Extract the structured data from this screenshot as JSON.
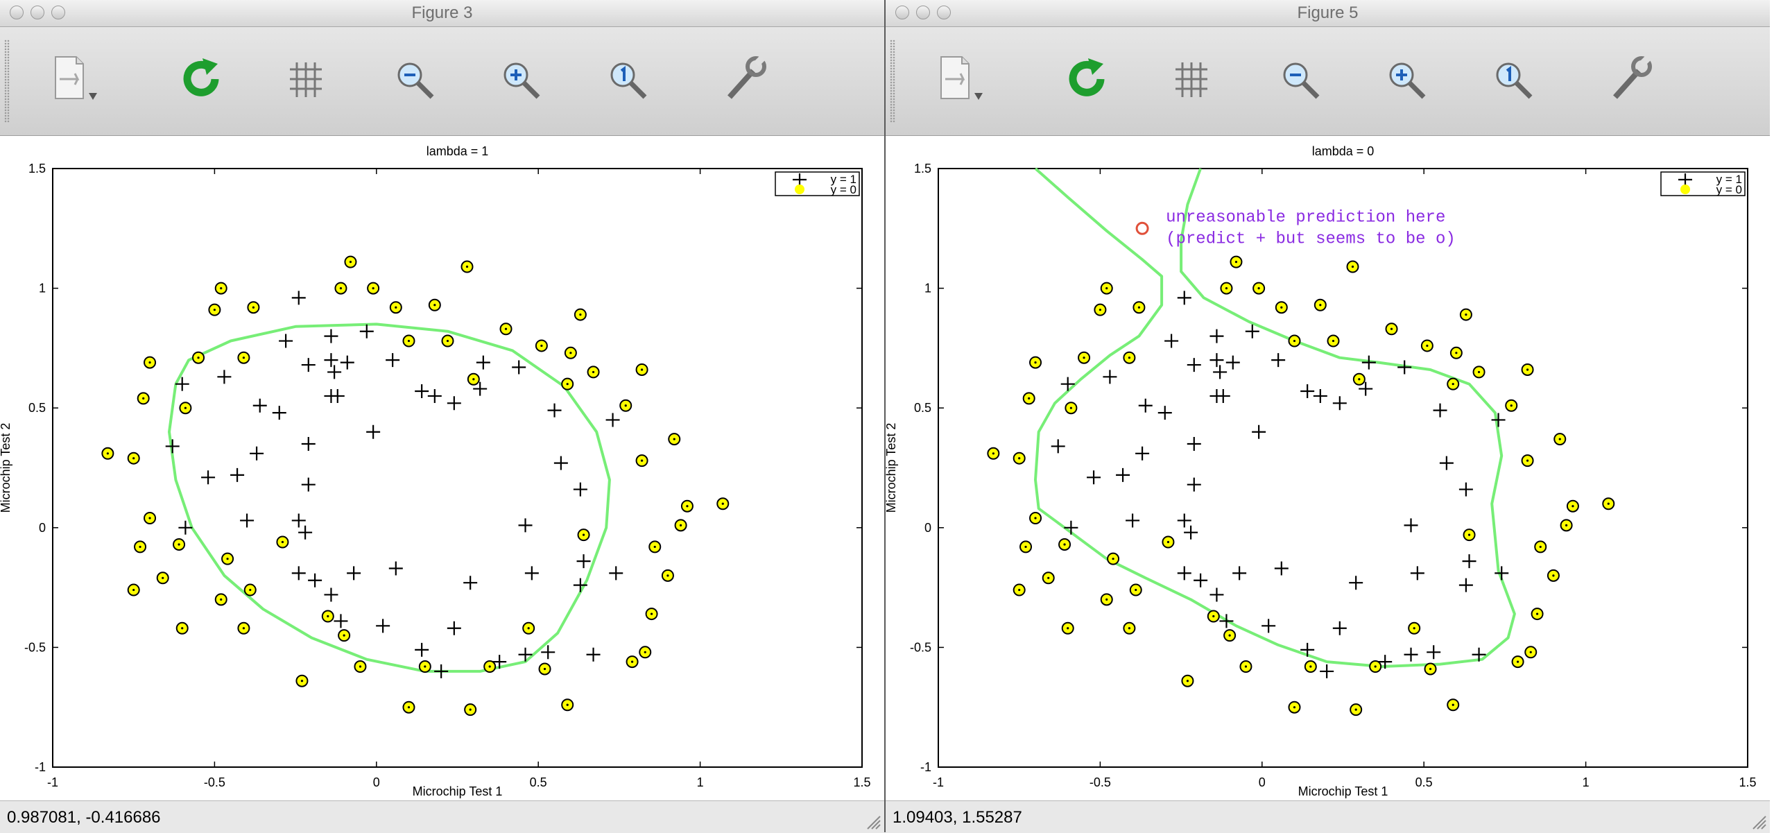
{
  "windows": [
    {
      "title": "Figure 3",
      "status": "0.987081, -0.416686",
      "chart_data": {
        "type": "scatter",
        "title": "lambda = 1",
        "xlabel": "Microchip Test 1",
        "ylabel": "Microchip Test 2",
        "xlim": [
          -1,
          1.5
        ],
        "ylim": [
          -1,
          1.5
        ],
        "xticks": [
          "-1",
          "-0.5",
          "0",
          "0.5",
          "1",
          "1.5"
        ],
        "yticks": [
          "-1",
          "-0.5",
          "0",
          "0.5",
          "1",
          "1.5"
        ],
        "legend": [
          "y = 1",
          "y = 0"
        ],
        "legend_position": "top-right",
        "boundary": [
          [
            -0.62,
            0.6
          ],
          [
            -0.64,
            0.4
          ],
          [
            -0.62,
            0.2
          ],
          [
            -0.57,
            0.0
          ],
          [
            -0.47,
            -0.2
          ],
          [
            -0.35,
            -0.34
          ],
          [
            -0.2,
            -0.46
          ],
          [
            -0.03,
            -0.55
          ],
          [
            0.15,
            -0.6
          ],
          [
            0.32,
            -0.6
          ],
          [
            0.46,
            -0.56
          ],
          [
            0.56,
            -0.44
          ],
          [
            0.65,
            -0.22
          ],
          [
            0.71,
            0.0
          ],
          [
            0.72,
            0.2
          ],
          [
            0.68,
            0.4
          ],
          [
            0.58,
            0.59
          ],
          [
            0.42,
            0.74
          ],
          [
            0.22,
            0.82
          ],
          [
            0.0,
            0.85
          ],
          [
            -0.25,
            0.84
          ],
          [
            -0.45,
            0.78
          ],
          [
            -0.58,
            0.7
          ],
          [
            -0.62,
            0.6
          ]
        ],
        "boundary_color": "#77ee77"
      }
    },
    {
      "title": "Figure 5",
      "status": "1.09403,  1.55287",
      "annotation": [
        "unreasonable prediction here",
        "(predict + but seems to be o)"
      ],
      "annotation_point": [
        -0.37,
        1.25
      ],
      "annotation_color": "#8a2be2",
      "marker_color": "#e0503a",
      "chart_data": {
        "type": "scatter",
        "title": "lambda = 0",
        "xlabel": "Microchip Test 1",
        "ylabel": "Microchip Test 2",
        "xlim": [
          -1,
          1.5
        ],
        "ylim": [
          -1,
          1.5
        ],
        "xticks": [
          "-1",
          "-0.5",
          "0",
          "0.5",
          "1",
          "1.5"
        ],
        "yticks": [
          "-1",
          "-0.5",
          "0",
          "0.5",
          "1",
          "1.5"
        ],
        "legend": [
          "y = 1",
          "y = 0"
        ],
        "legend_position": "top-right",
        "boundary_segments": [
          [
            [
              -0.7,
              1.5
            ],
            [
              -0.6,
              1.38
            ],
            [
              -0.48,
              1.24
            ],
            [
              -0.37,
              1.12
            ],
            [
              -0.31,
              1.05
            ],
            [
              -0.31,
              0.93
            ],
            [
              -0.38,
              0.8
            ],
            [
              -0.47,
              0.72
            ],
            [
              -0.56,
              0.62
            ],
            [
              -0.64,
              0.52
            ],
            [
              -0.69,
              0.4
            ],
            [
              -0.7,
              0.2
            ],
            [
              -0.69,
              0.08
            ],
            [
              -0.62,
              0.01
            ],
            [
              -0.48,
              -0.13
            ],
            [
              -0.36,
              -0.21
            ],
            [
              -0.22,
              -0.3
            ],
            [
              -0.08,
              -0.41
            ],
            [
              0.05,
              -0.49
            ],
            [
              0.2,
              -0.56
            ],
            [
              0.37,
              -0.58
            ],
            [
              0.55,
              -0.57
            ],
            [
              0.68,
              -0.55
            ],
            [
              0.76,
              -0.46
            ],
            [
              0.78,
              -0.36
            ],
            [
              0.73,
              -0.18
            ],
            [
              0.71,
              0.1
            ],
            [
              0.74,
              0.3
            ],
            [
              0.72,
              0.48
            ],
            [
              0.64,
              0.6
            ],
            [
              0.52,
              0.66
            ],
            [
              0.36,
              0.69
            ],
            [
              0.24,
              0.71
            ],
            [
              0.1,
              0.78
            ],
            [
              -0.04,
              0.86
            ],
            [
              -0.18,
              0.96
            ],
            [
              -0.25,
              1.07
            ],
            [
              -0.25,
              1.2
            ],
            [
              -0.23,
              1.35
            ],
            [
              -0.19,
              1.5
            ]
          ]
        ],
        "boundary_color": "#77ee77"
      }
    }
  ],
  "points_pos": [
    [
      0.05,
      0.7
    ],
    [
      -0.09,
      0.69
    ],
    [
      -0.21,
      0.68
    ],
    [
      -0.36,
      0.51
    ],
    [
      -0.3,
      0.48
    ],
    [
      -0.14,
      0.55
    ],
    [
      -0.12,
      0.55
    ],
    [
      -0.01,
      0.4
    ],
    [
      -0.21,
      0.35
    ],
    [
      -0.37,
      0.31
    ],
    [
      -0.43,
      0.22
    ],
    [
      -0.52,
      0.21
    ],
    [
      -0.21,
      0.18
    ],
    [
      -0.24,
      0.03
    ],
    [
      -0.4,
      0.03
    ],
    [
      -0.59,
      0.0
    ],
    [
      -0.22,
      -0.02
    ],
    [
      -0.07,
      -0.19
    ],
    [
      0.06,
      -0.17
    ],
    [
      -0.19,
      -0.22
    ],
    [
      -0.24,
      -0.19
    ],
    [
      -0.14,
      -0.28
    ],
    [
      -0.11,
      -0.39
    ],
    [
      0.02,
      -0.41
    ],
    [
      0.24,
      -0.42
    ],
    [
      0.14,
      -0.51
    ],
    [
      0.2,
      -0.6
    ],
    [
      0.38,
      -0.56
    ],
    [
      0.46,
      -0.53
    ],
    [
      0.53,
      -0.52
    ],
    [
      0.67,
      -0.53
    ],
    [
      0.74,
      -0.19
    ],
    [
      0.63,
      -0.24
    ],
    [
      0.64,
      -0.14
    ],
    [
      0.48,
      -0.19
    ],
    [
      0.46,
      0.01
    ],
    [
      0.29,
      -0.23
    ],
    [
      0.57,
      0.27
    ],
    [
      0.63,
      0.16
    ],
    [
      0.73,
      0.45
    ],
    [
      0.55,
      0.49
    ],
    [
      0.44,
      0.67
    ],
    [
      0.33,
      0.69
    ],
    [
      0.32,
      0.58
    ],
    [
      0.24,
      0.52
    ],
    [
      0.18,
      0.55
    ],
    [
      0.14,
      0.57
    ],
    [
      -0.13,
      0.65
    ],
    [
      -0.14,
      0.7
    ],
    [
      -0.14,
      0.8
    ],
    [
      -0.03,
      0.82
    ],
    [
      -0.24,
      0.96
    ],
    [
      -0.28,
      0.78
    ],
    [
      -0.47,
      0.63
    ],
    [
      -0.6,
      0.6
    ],
    [
      -0.63,
      0.34
    ]
  ],
  "points_neg": [
    [
      -0.83,
      0.31
    ],
    [
      -0.75,
      0.29
    ],
    [
      -0.72,
      0.54
    ],
    [
      -0.7,
      0.69
    ],
    [
      -0.7,
      0.04
    ],
    [
      -0.73,
      -0.08
    ],
    [
      -0.75,
      -0.26
    ],
    [
      -0.66,
      -0.21
    ],
    [
      -0.61,
      -0.07
    ],
    [
      -0.6,
      -0.42
    ],
    [
      -0.59,
      0.5
    ],
    [
      -0.55,
      0.71
    ],
    [
      -0.5,
      0.91
    ],
    [
      -0.48,
      1.0
    ],
    [
      -0.48,
      -0.3
    ],
    [
      -0.46,
      -0.13
    ],
    [
      -0.41,
      0.71
    ],
    [
      -0.38,
      0.92
    ],
    [
      -0.41,
      -0.42
    ],
    [
      -0.39,
      -0.26
    ],
    [
      -0.29,
      -0.06
    ],
    [
      -0.23,
      -0.64
    ],
    [
      -0.15,
      -0.37
    ],
    [
      -0.1,
      -0.45
    ],
    [
      -0.11,
      1.0
    ],
    [
      -0.08,
      1.11
    ],
    [
      -0.05,
      -0.58
    ],
    [
      -0.01,
      1.0
    ],
    [
      0.06,
      0.92
    ],
    [
      0.1,
      -0.75
    ],
    [
      0.1,
      0.78
    ],
    [
      0.18,
      0.93
    ],
    [
      0.22,
      0.78
    ],
    [
      0.28,
      1.09
    ],
    [
      0.3,
      0.62
    ],
    [
      0.29,
      -0.76
    ],
    [
      0.35,
      -0.58
    ],
    [
      0.15,
      -0.58
    ],
    [
      0.4,
      0.83
    ],
    [
      0.47,
      -0.42
    ],
    [
      0.51,
      0.76
    ],
    [
      0.52,
      -0.59
    ],
    [
      0.59,
      0.6
    ],
    [
      0.6,
      0.73
    ],
    [
      0.59,
      -0.74
    ],
    [
      0.63,
      0.89
    ],
    [
      0.64,
      -0.03
    ],
    [
      0.67,
      0.65
    ],
    [
      0.77,
      0.51
    ],
    [
      0.79,
      -0.56
    ],
    [
      0.82,
      0.66
    ],
    [
      0.82,
      0.28
    ],
    [
      0.83,
      -0.52
    ],
    [
      0.85,
      -0.36
    ],
    [
      0.86,
      -0.08
    ],
    [
      0.9,
      -0.2
    ],
    [
      0.92,
      0.37
    ],
    [
      0.94,
      0.01
    ],
    [
      0.96,
      0.09
    ],
    [
      1.07,
      0.1
    ]
  ]
}
